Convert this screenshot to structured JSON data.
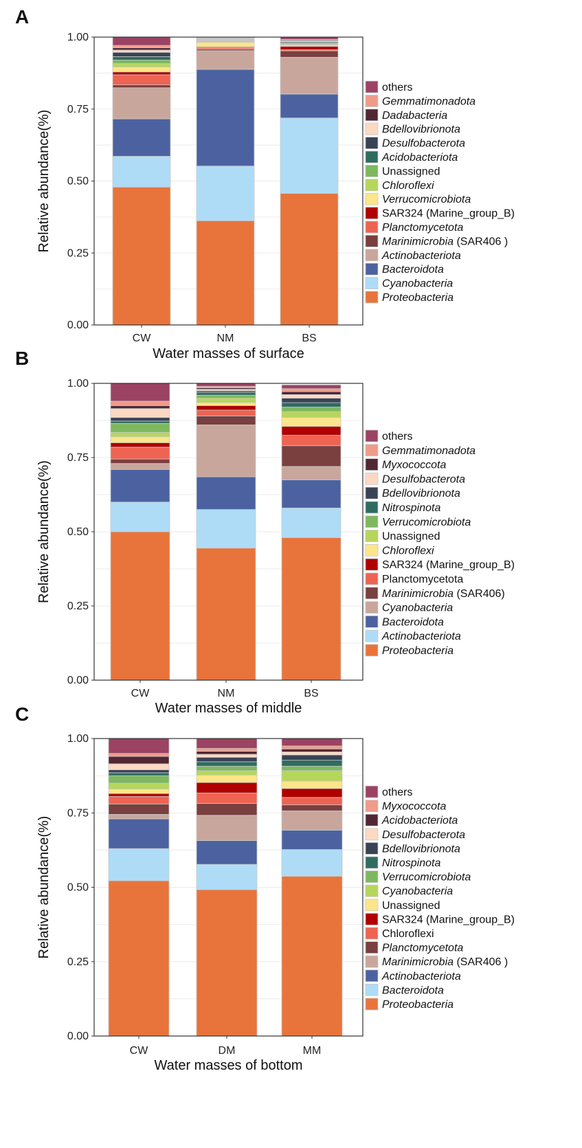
{
  "colors": {
    "Proteobacteria": "#e8743b",
    "Cyanobacteria": "#aedcf7",
    "Bacteroidota": "#4c62a0",
    "Actinobacteriota": "#c9a69c",
    "Marinimicrobia": "#7a3f3f",
    "Planctomycetota": "#ee6352",
    "SAR324": "#b00000",
    "Verrucomicrobiota": "#fce58a",
    "Chloroflexi": "#b6d65a",
    "Unassigned": "#7db85e",
    "Acidobacteriota": "#2f6c60",
    "Desulfobacterota": "#3a4256",
    "Bdellovibrionota": "#fcd9c3",
    "Dadabacteria": "#512734",
    "Gemmatimonadota": "#ef9b8a",
    "others": "#9c4263",
    "Nitrospinota": "#2f6c60",
    "Myxococcota": "#ef9b8a"
  },
  "chart_data": [
    {
      "type": "bar",
      "stacked": true,
      "panel_label": "A",
      "xlabel": "Water masses of surface",
      "ylabel": "Relative abundance(%)",
      "ylim": [
        0,
        1
      ],
      "yticks": [
        "0.00",
        "0.25",
        "0.50",
        "0.75",
        "1.00"
      ],
      "categories": [
        "CW",
        "NM",
        "BS"
      ],
      "series": [
        {
          "name": "Proteobacteria",
          "label": "Proteobacteria",
          "italic": true,
          "color_key": "Proteobacteria",
          "values": [
            0.479,
            0.362,
            0.457
          ]
        },
        {
          "name": "Cyanobacteria",
          "label": "Cyanobacteria",
          "italic": true,
          "color_key": "Cyanobacteria",
          "values": [
            0.107,
            0.19,
            0.262
          ]
        },
        {
          "name": "Bacteroidota",
          "label": "Bacteroidota",
          "italic": true,
          "color_key": "Bacteroidota",
          "values": [
            0.13,
            0.336,
            0.083
          ]
        },
        {
          "name": "Actinobacteriota",
          "label": "Actinobacteriota",
          "italic": true,
          "color_key": "Actinobacteriota",
          "values": [
            0.108,
            0.065,
            0.128
          ]
        },
        {
          "name": "Marinimicrobia (SAR406)",
          "label": "Marinimicrobia",
          "suffix": " (SAR406 )",
          "italic": true,
          "color_key": "Marinimicrobia",
          "values": [
            0.01,
            0.005,
            0.022
          ]
        },
        {
          "name": "Planctomycetota",
          "label": "Planctomycetota",
          "italic": true,
          "color_key": "Planctomycetota",
          "values": [
            0.035,
            0.005,
            0.004
          ]
        },
        {
          "name": "SAR324 (Marine_group_B)",
          "label": "SAR324 (Marine_group_B)",
          "italic": false,
          "color_key": "SAR324",
          "values": [
            0.01,
            0.003,
            0.012
          ]
        },
        {
          "name": "Verrucomicrobiota",
          "label": "Verrucomicrobiota",
          "italic": true,
          "color_key": "Verrucomicrobiota",
          "values": [
            0.017,
            0.016,
            0.004
          ]
        },
        {
          "name": "Chloroflexi",
          "label": "Chloroflexi",
          "italic": true,
          "color_key": "Chloroflexi",
          "values": [
            0.012,
            0.004,
            0.003
          ]
        },
        {
          "name": "Unassigned",
          "label": "Unassigned",
          "italic": false,
          "color_key": "Unassigned",
          "values": [
            0.012,
            0.002,
            0.003
          ]
        },
        {
          "name": "Acidobacteriota",
          "label": "Acidobacteriota",
          "italic": true,
          "color_key": "Acidobacteriota",
          "values": [
            0.012,
            0.002,
            0.003
          ]
        },
        {
          "name": "Desulfobacterota",
          "label": "Desulfobacterota",
          "italic": true,
          "color_key": "Desulfobacterota",
          "values": [
            0.015,
            0.002,
            0.003
          ]
        },
        {
          "name": "Bdellovibrionota",
          "label": "Bdellovibrionota",
          "italic": true,
          "color_key": "Bdellovibrionota",
          "values": [
            0.008,
            0.002,
            0.003
          ]
        },
        {
          "name": "Dadabacteria",
          "label": "Dadabacteria",
          "italic": true,
          "color_key": "Dadabacteria",
          "values": [
            0.008,
            0.002,
            0.003
          ]
        },
        {
          "name": "Gemmatimonadota",
          "label": "Gemmatimonadota",
          "italic": true,
          "color_key": "Gemmatimonadota",
          "values": [
            0.008,
            0.002,
            0.002
          ]
        },
        {
          "name": "others",
          "label": "others",
          "italic": false,
          "color_key": "others",
          "values": [
            0.029,
            0.002,
            0.008
          ]
        }
      ]
    },
    {
      "type": "bar",
      "stacked": true,
      "panel_label": "B",
      "xlabel": "Water masses of middle",
      "ylabel": "Relative abundance(%)",
      "ylim": [
        0,
        1
      ],
      "yticks": [
        "0.00",
        "0.25",
        "0.50",
        "0.75",
        "1.00"
      ],
      "categories": [
        "CW",
        "NM",
        "BS"
      ],
      "series": [
        {
          "name": "Proteobacteria",
          "label": "Proteobacteria",
          "italic": true,
          "color_key": "Proteobacteria",
          "values": [
            0.5,
            0.445,
            0.48
          ]
        },
        {
          "name": "Actinobacteriota",
          "label": "Actinobacteriota",
          "italic": true,
          "color_key": "Cyanobacteria",
          "values": [
            0.1,
            0.13,
            0.1
          ]
        },
        {
          "name": "Bacteroidota",
          "label": "Bacteroidota",
          "italic": true,
          "color_key": "Bacteroidota",
          "values": [
            0.11,
            0.11,
            0.095
          ]
        },
        {
          "name": "Cyanobacteria",
          "label": "Cyanobacteria",
          "italic": true,
          "color_key": "Actinobacteriota",
          "values": [
            0.02,
            0.175,
            0.045
          ]
        },
        {
          "name": "Marinimicrobia (SAR406)",
          "label": "Marinimicrobia",
          "suffix": " (SAR406)",
          "italic": true,
          "color_key": "Marinimicrobia",
          "values": [
            0.015,
            0.03,
            0.07
          ]
        },
        {
          "name": "Planctomycetota",
          "label": "Planctomycetota",
          "italic": false,
          "color_key": "Planctomycetota",
          "values": [
            0.04,
            0.02,
            0.035
          ]
        },
        {
          "name": "SAR324 (Marine_group_B)",
          "label": "SAR324 (Marine_group_B)",
          "italic": false,
          "color_key": "SAR324",
          "values": [
            0.015,
            0.015,
            0.03
          ]
        },
        {
          "name": "Chloroflexi",
          "label": "Chloroflexi",
          "italic": true,
          "color_key": "Verrucomicrobiota",
          "values": [
            0.02,
            0.01,
            0.03
          ]
        },
        {
          "name": "Unassigned",
          "label": "Unassigned",
          "italic": false,
          "color_key": "Chloroflexi",
          "values": [
            0.015,
            0.015,
            0.02
          ]
        },
        {
          "name": "Verrucomicrobiota",
          "label": "Verrucomicrobiota",
          "italic": true,
          "color_key": "Unassigned",
          "values": [
            0.03,
            0.01,
            0.015
          ]
        },
        {
          "name": "Nitrospinota",
          "label": "Nitrospinota",
          "italic": true,
          "color_key": "Nitrospinota",
          "values": [
            0.008,
            0.01,
            0.015
          ]
        },
        {
          "name": "Bdellovibrionota",
          "label": "Bdellovibrionota",
          "italic": true,
          "color_key": "Desulfobacterota",
          "values": [
            0.012,
            0.005,
            0.015
          ]
        },
        {
          "name": "Desulfobacterota",
          "label": "Desulfobacterota",
          "italic": true,
          "color_key": "Bdellovibrionota",
          "values": [
            0.03,
            0.005,
            0.012
          ]
        },
        {
          "name": "Myxococcota",
          "label": "Myxococcota",
          "italic": true,
          "color_key": "Dadabacteria",
          "values": [
            0.01,
            0.005,
            0.01
          ]
        },
        {
          "name": "Gemmatimonadota",
          "label": "Gemmatimonadota",
          "italic": true,
          "color_key": "Gemmatimonadota",
          "values": [
            0.015,
            0.005,
            0.01
          ]
        },
        {
          "name": "others",
          "label": "others",
          "italic": false,
          "color_key": "others",
          "values": [
            0.06,
            0.01,
            0.013
          ]
        }
      ]
    },
    {
      "type": "bar",
      "stacked": true,
      "panel_label": "C",
      "xlabel": "Water masses of bottom",
      "ylabel": "Relative abundance(%)",
      "ylim": [
        0,
        1
      ],
      "yticks": [
        "0.00",
        "0.25",
        "0.50",
        "0.75",
        "1.00"
      ],
      "categories": [
        "CW",
        "DM",
        "MM"
      ],
      "series": [
        {
          "name": "Proteobacteria",
          "label": "Proteobacteria",
          "italic": true,
          "color_key": "Proteobacteria",
          "values": [
            0.522,
            0.492,
            0.537
          ]
        },
        {
          "name": "Bacteroidota",
          "label": "Bacteroidota",
          "italic": true,
          "color_key": "Cyanobacteria",
          "values": [
            0.108,
            0.085,
            0.09
          ]
        },
        {
          "name": "Actinobacteriota",
          "label": "Actinobacteriota",
          "italic": true,
          "color_key": "Bacteroidota",
          "values": [
            0.1,
            0.08,
            0.065
          ]
        },
        {
          "name": "Marinimicrobia (SAR406)",
          "label": "Marinimicrobia",
          "suffix": " (SAR406 )",
          "italic": true,
          "color_key": "Actinobacteriota",
          "values": [
            0.015,
            0.085,
            0.065
          ]
        },
        {
          "name": "Planctomycetota",
          "label": "Planctomycetota",
          "italic": true,
          "color_key": "Marinimicrobia",
          "values": [
            0.035,
            0.04,
            0.02
          ]
        },
        {
          "name": "Chloroflexi",
          "label": "Chloroflexi",
          "italic": false,
          "color_key": "Planctomycetota",
          "values": [
            0.025,
            0.035,
            0.025
          ]
        },
        {
          "name": "SAR324 (Marine_group_B)",
          "label": "SAR324 (Marine_group_B)",
          "italic": false,
          "color_key": "SAR324",
          "values": [
            0.01,
            0.035,
            0.03
          ]
        },
        {
          "name": "Unassigned",
          "label": "Unassigned",
          "italic": false,
          "color_key": "Verrucomicrobiota",
          "values": [
            0.015,
            0.025,
            0.025
          ]
        },
        {
          "name": "Cyanobacteria",
          "label": "Cyanobacteria",
          "italic": true,
          "color_key": "Chloroflexi",
          "values": [
            0.02,
            0.015,
            0.035
          ]
        },
        {
          "name": "Verrucomicrobiota",
          "label": "Verrucomicrobiota",
          "italic": true,
          "color_key": "Unassigned",
          "values": [
            0.025,
            0.015,
            0.015
          ]
        },
        {
          "name": "Nitrospinota",
          "label": "Nitrospinota",
          "italic": true,
          "color_key": "Nitrospinota",
          "values": [
            0.01,
            0.015,
            0.02
          ]
        },
        {
          "name": "Bdellovibrionota",
          "label": "Bdellovibrionota",
          "italic": true,
          "color_key": "Desulfobacterota",
          "values": [
            0.01,
            0.015,
            0.018
          ]
        },
        {
          "name": "Desulfobacterota",
          "label": "Desulfobacterota",
          "italic": true,
          "color_key": "Bdellovibrionota",
          "values": [
            0.02,
            0.01,
            0.01
          ]
        },
        {
          "name": "Acidobacteriota",
          "label": "Acidobacteriota",
          "italic": true,
          "color_key": "Dadabacteria",
          "values": [
            0.025,
            0.01,
            0.01
          ]
        },
        {
          "name": "Myxococcota",
          "label": "Myxococcota",
          "italic": true,
          "color_key": "Gemmatimonadota",
          "values": [
            0.01,
            0.01,
            0.01
          ]
        },
        {
          "name": "others",
          "label": "others",
          "italic": false,
          "color_key": "others",
          "values": [
            0.05,
            0.033,
            0.025
          ]
        }
      ]
    }
  ]
}
